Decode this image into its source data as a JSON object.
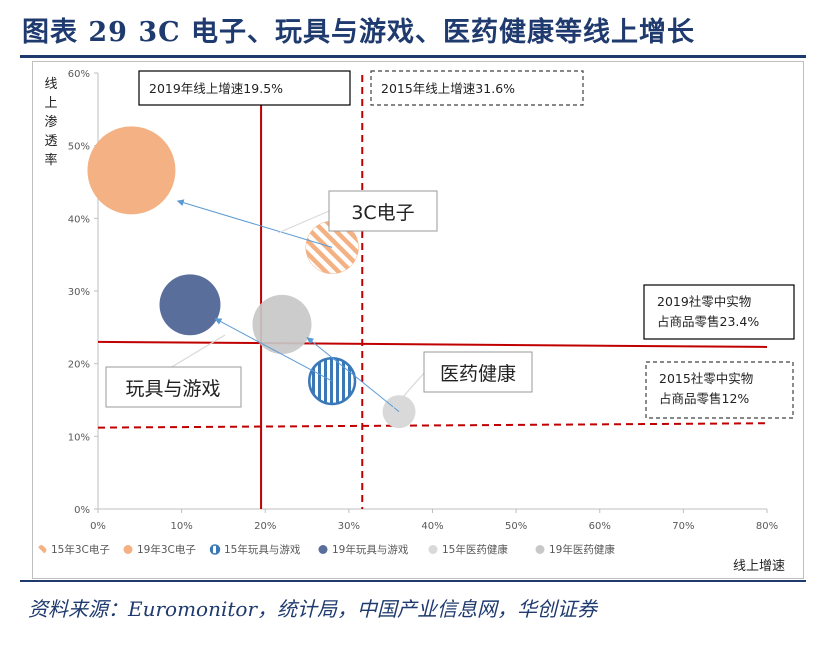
{
  "figure": {
    "title": "图表 29   3C 电子、玩具与游戏、医药健康等线上增长",
    "source": "资料来源：Euromonitor，统计局，中国产业信息网，华创证券"
  },
  "chart_data": {
    "type": "scatter",
    "ylabel": "线上渗透率",
    "xlabel": "线上增速",
    "xlim": [
      0,
      0.8
    ],
    "ylim": [
      0,
      0.6
    ],
    "x_ticks": [
      "0%",
      "10%",
      "20%",
      "30%",
      "40%",
      "50%",
      "60%",
      "70%",
      "80%"
    ],
    "y_ticks": [
      "0%",
      "10%",
      "20%",
      "30%",
      "40%",
      "50%",
      "60%"
    ],
    "legend_position": "bottom",
    "series": [
      {
        "name": "15年3C电子",
        "x": 0.28,
        "y": 0.36,
        "size": 0.36,
        "color": "#f4b183",
        "pattern": "diagonal"
      },
      {
        "name": "19年3C电子",
        "x": 0.04,
        "y": 0.466,
        "size": 1.0,
        "color": "#f4b183",
        "pattern": "solid"
      },
      {
        "name": "15年玩具与游戏",
        "x": 0.28,
        "y": 0.176,
        "size": 0.27,
        "color": "#5b9bd5",
        "pattern": "vertical"
      },
      {
        "name": "19年玩具与游戏",
        "x": 0.11,
        "y": 0.281,
        "size": 0.48,
        "color": "#5a6e9c",
        "pattern": "solid"
      },
      {
        "name": "15年医药健康",
        "x": 0.36,
        "y": 0.134,
        "size": 0.14,
        "color": "#d9d9d9",
        "pattern": "solid"
      },
      {
        "name": "19年医药健康",
        "x": 0.22,
        "y": 0.254,
        "size": 0.45,
        "color": "#c8c8c8",
        "pattern": "solid"
      }
    ],
    "arrows": [
      {
        "from": [
          0.28,
          0.36
        ],
        "to": [
          0.095,
          0.424
        ]
      },
      {
        "from": [
          0.28,
          0.176
        ],
        "to": [
          0.14,
          0.262
        ]
      },
      {
        "from": [
          0.36,
          0.134
        ],
        "to": [
          0.25,
          0.236
        ]
      }
    ],
    "reference_lines": [
      {
        "axis": "x",
        "value": 0.195,
        "style": "solid",
        "label": "2019年线上增速19.5%"
      },
      {
        "axis": "x",
        "value": 0.316,
        "style": "dashed",
        "label": "2015年线上增速31.6%"
      },
      {
        "axis": "y",
        "value": 0.23,
        "value_end": 0.223,
        "style": "solid",
        "label": "2019社零中实物占商品零售23.4%"
      },
      {
        "axis": "y",
        "value": 0.112,
        "value_end": 0.118,
        "style": "dashed",
        "label": "2015社零中实物占商品零售12%"
      }
    ],
    "annotations": [
      {
        "text": "3C电子",
        "series": [
          "15年3C电子"
        ]
      },
      {
        "text": "玩具与游戏",
        "series": [
          "19年玩具与游戏",
          "19年医药健康"
        ]
      },
      {
        "text": "医药健康",
        "series": [
          "15年医药健康"
        ]
      }
    ],
    "colors": {
      "reference_line": "#c00000",
      "arrow": "#5b9bd5",
      "text": "#595959"
    }
  }
}
